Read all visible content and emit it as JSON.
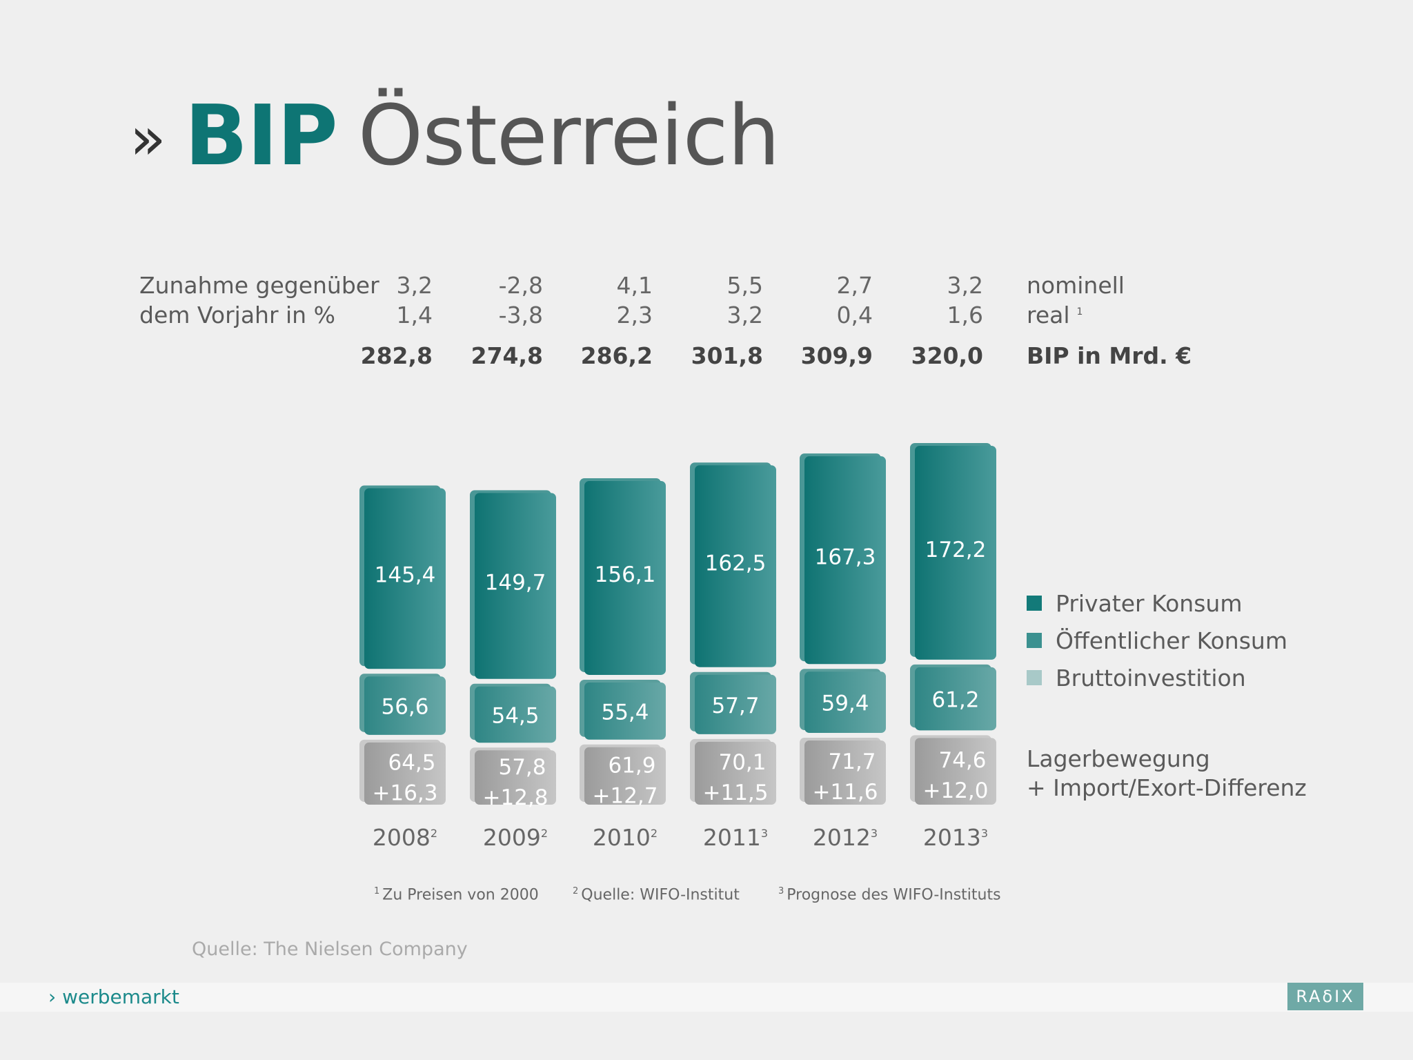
{
  "title": {
    "chevron": "»",
    "main": "BIP",
    "rest": "Österreich"
  },
  "header_rows": {
    "label_line1": "Zunahme gegenüber",
    "label_line2": "dem Vorjahr in %",
    "nominell_label": "nominell",
    "real_label": "real",
    "real_sup": "1",
    "bip_label": "BIP in Mrd. €"
  },
  "chart_data": {
    "type": "bar",
    "stacked": true,
    "categories": [
      "2008",
      "2009",
      "2010",
      "2011",
      "2012",
      "2013"
    ],
    "category_footnotes": [
      "2",
      "2",
      "2",
      "3",
      "3",
      "3"
    ],
    "nominal_growth": [
      "3,2",
      "-2,8",
      "4,1",
      "5,5",
      "2,7",
      "3,2"
    ],
    "real_growth": [
      "1,4",
      "-3,8",
      "2,3",
      "3,2",
      "0,4",
      "1,6"
    ],
    "bip_total": [
      "282,8",
      "274,8",
      "286,2",
      "301,8",
      "309,9",
      "320,0"
    ],
    "series": [
      {
        "name": "Privater Konsum",
        "values": [
          145.4,
          149.7,
          156.1,
          162.5,
          167.3,
          172.2
        ],
        "labels": [
          "145,4",
          "149,7",
          "156,1",
          "162,5",
          "167,3",
          "172,2"
        ]
      },
      {
        "name": "Öffentlicher Konsum",
        "values": [
          56.6,
          54.5,
          55.4,
          57.7,
          59.4,
          61.2
        ],
        "labels": [
          "56,6",
          "54,5",
          "55,4",
          "57,7",
          "59,4",
          "61,2"
        ]
      },
      {
        "name": "Bruttoinvestition",
        "values": [
          64.5,
          57.8,
          61.9,
          70.1,
          71.7,
          74.6
        ],
        "labels": [
          "64,5",
          "57,8",
          "61,9",
          "70,1",
          "71,7",
          "74,6"
        ],
        "extra_name": "Lagerbewegung + Import/Exort-Differenz",
        "extra_values": [
          16.3,
          12.8,
          12.7,
          11.5,
          11.6,
          12.0
        ],
        "extra_labels": [
          "+16,3",
          "+12,8",
          "+12,7",
          "+11,5",
          "+11,6",
          "+12,0"
        ]
      }
    ],
    "colors": {
      "privat": "#137a79",
      "oeffentlich": "#3b9190",
      "brutto": "#a9a9a9"
    }
  },
  "legend": {
    "privat": "Privater Konsum",
    "oeffentlich": "Öffentlicher Konsum",
    "brutto": "Bruttoinvestition",
    "extra_line1": "Lagerbewegung",
    "extra_line2": "+ Import/Exort-Differenz",
    "colors": {
      "privat": "#137a79",
      "oeffentlich": "#3b9190",
      "brutto": "#a8c9c8"
    }
  },
  "footnotes": [
    {
      "sup": "1",
      "text": "Zu Preisen von 2000"
    },
    {
      "sup": "2",
      "text": "Quelle: WIFO-Institut"
    },
    {
      "sup": "3",
      "text": "Prognose des WIFO-Instituts"
    }
  ],
  "source": "Quelle: The Nielsen Company",
  "footer": {
    "left": "› werbemarkt",
    "logo": "RAδIX"
  }
}
